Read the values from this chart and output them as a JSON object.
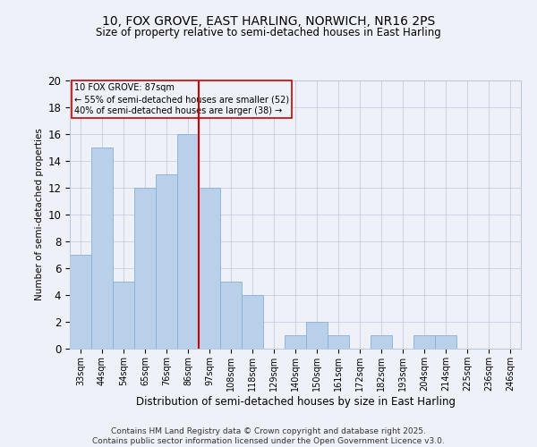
{
  "title1": "10, FOX GROVE, EAST HARLING, NORWICH, NR16 2PS",
  "title2": "Size of property relative to semi-detached houses in East Harling",
  "xlabel": "Distribution of semi-detached houses by size in East Harling",
  "ylabel": "Number of semi-detached properties",
  "bin_labels": [
    "33sqm",
    "44sqm",
    "54sqm",
    "65sqm",
    "76sqm",
    "86sqm",
    "97sqm",
    "108sqm",
    "118sqm",
    "129sqm",
    "140sqm",
    "150sqm",
    "161sqm",
    "172sqm",
    "182sqm",
    "193sqm",
    "204sqm",
    "214sqm",
    "225sqm",
    "236sqm",
    "246sqm"
  ],
  "bar_values": [
    7,
    15,
    5,
    12,
    13,
    16,
    12,
    5,
    4,
    0,
    1,
    2,
    1,
    0,
    1,
    0,
    1,
    1,
    0,
    0,
    0
  ],
  "bar_color": "#b8d0ea",
  "bar_edge_color": "#8ab0d0",
  "vline_x_index": 5,
  "vline_color": "#cc0000",
  "annotation_title": "10 FOX GROVE: 87sqm",
  "annotation_line1": "← 55% of semi-detached houses are smaller (52)",
  "annotation_line2": "40% of semi-detached houses are larger (38) →",
  "box_color": "#cc0000",
  "ylim": [
    0,
    20
  ],
  "yticks": [
    0,
    2,
    4,
    6,
    8,
    10,
    12,
    14,
    16,
    18,
    20
  ],
  "footer": "Contains HM Land Registry data © Crown copyright and database right 2025.\nContains public sector information licensed under the Open Government Licence v3.0.",
  "bg_color": "#eef2f8"
}
